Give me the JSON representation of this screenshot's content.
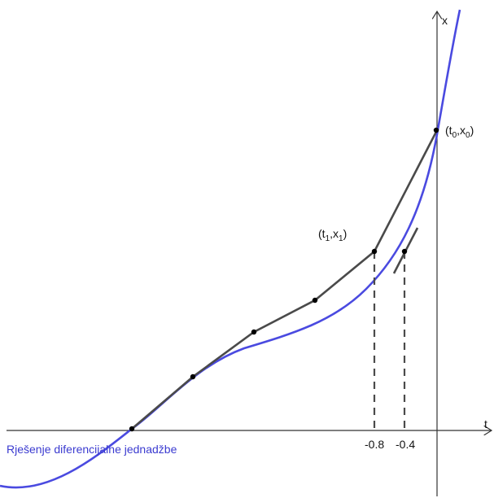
{
  "figure": {
    "axis_labels": {
      "x": "t",
      "y": "x"
    },
    "tick_labels": [
      "-0.8",
      "-0.4"
    ],
    "point_labels": {
      "p0": {
        "open": "(",
        "t": "t",
        "t_sub": "0",
        "sep": ",",
        "x": "x",
        "x_sub": "0",
        "close": ")"
      },
      "p1": {
        "open": "(",
        "t": "t",
        "t_sub": "1",
        "sep": ",",
        "x": "x",
        "x_sub": "1",
        "close": ")"
      }
    },
    "caption": "Rješenje diferencijalne jednadžbe",
    "colors": {
      "solution_curve": "#4a4ae0",
      "euler_polyline": "#4a4a4a",
      "axes": "#333333",
      "caption": "#3b3bd0"
    }
  }
}
